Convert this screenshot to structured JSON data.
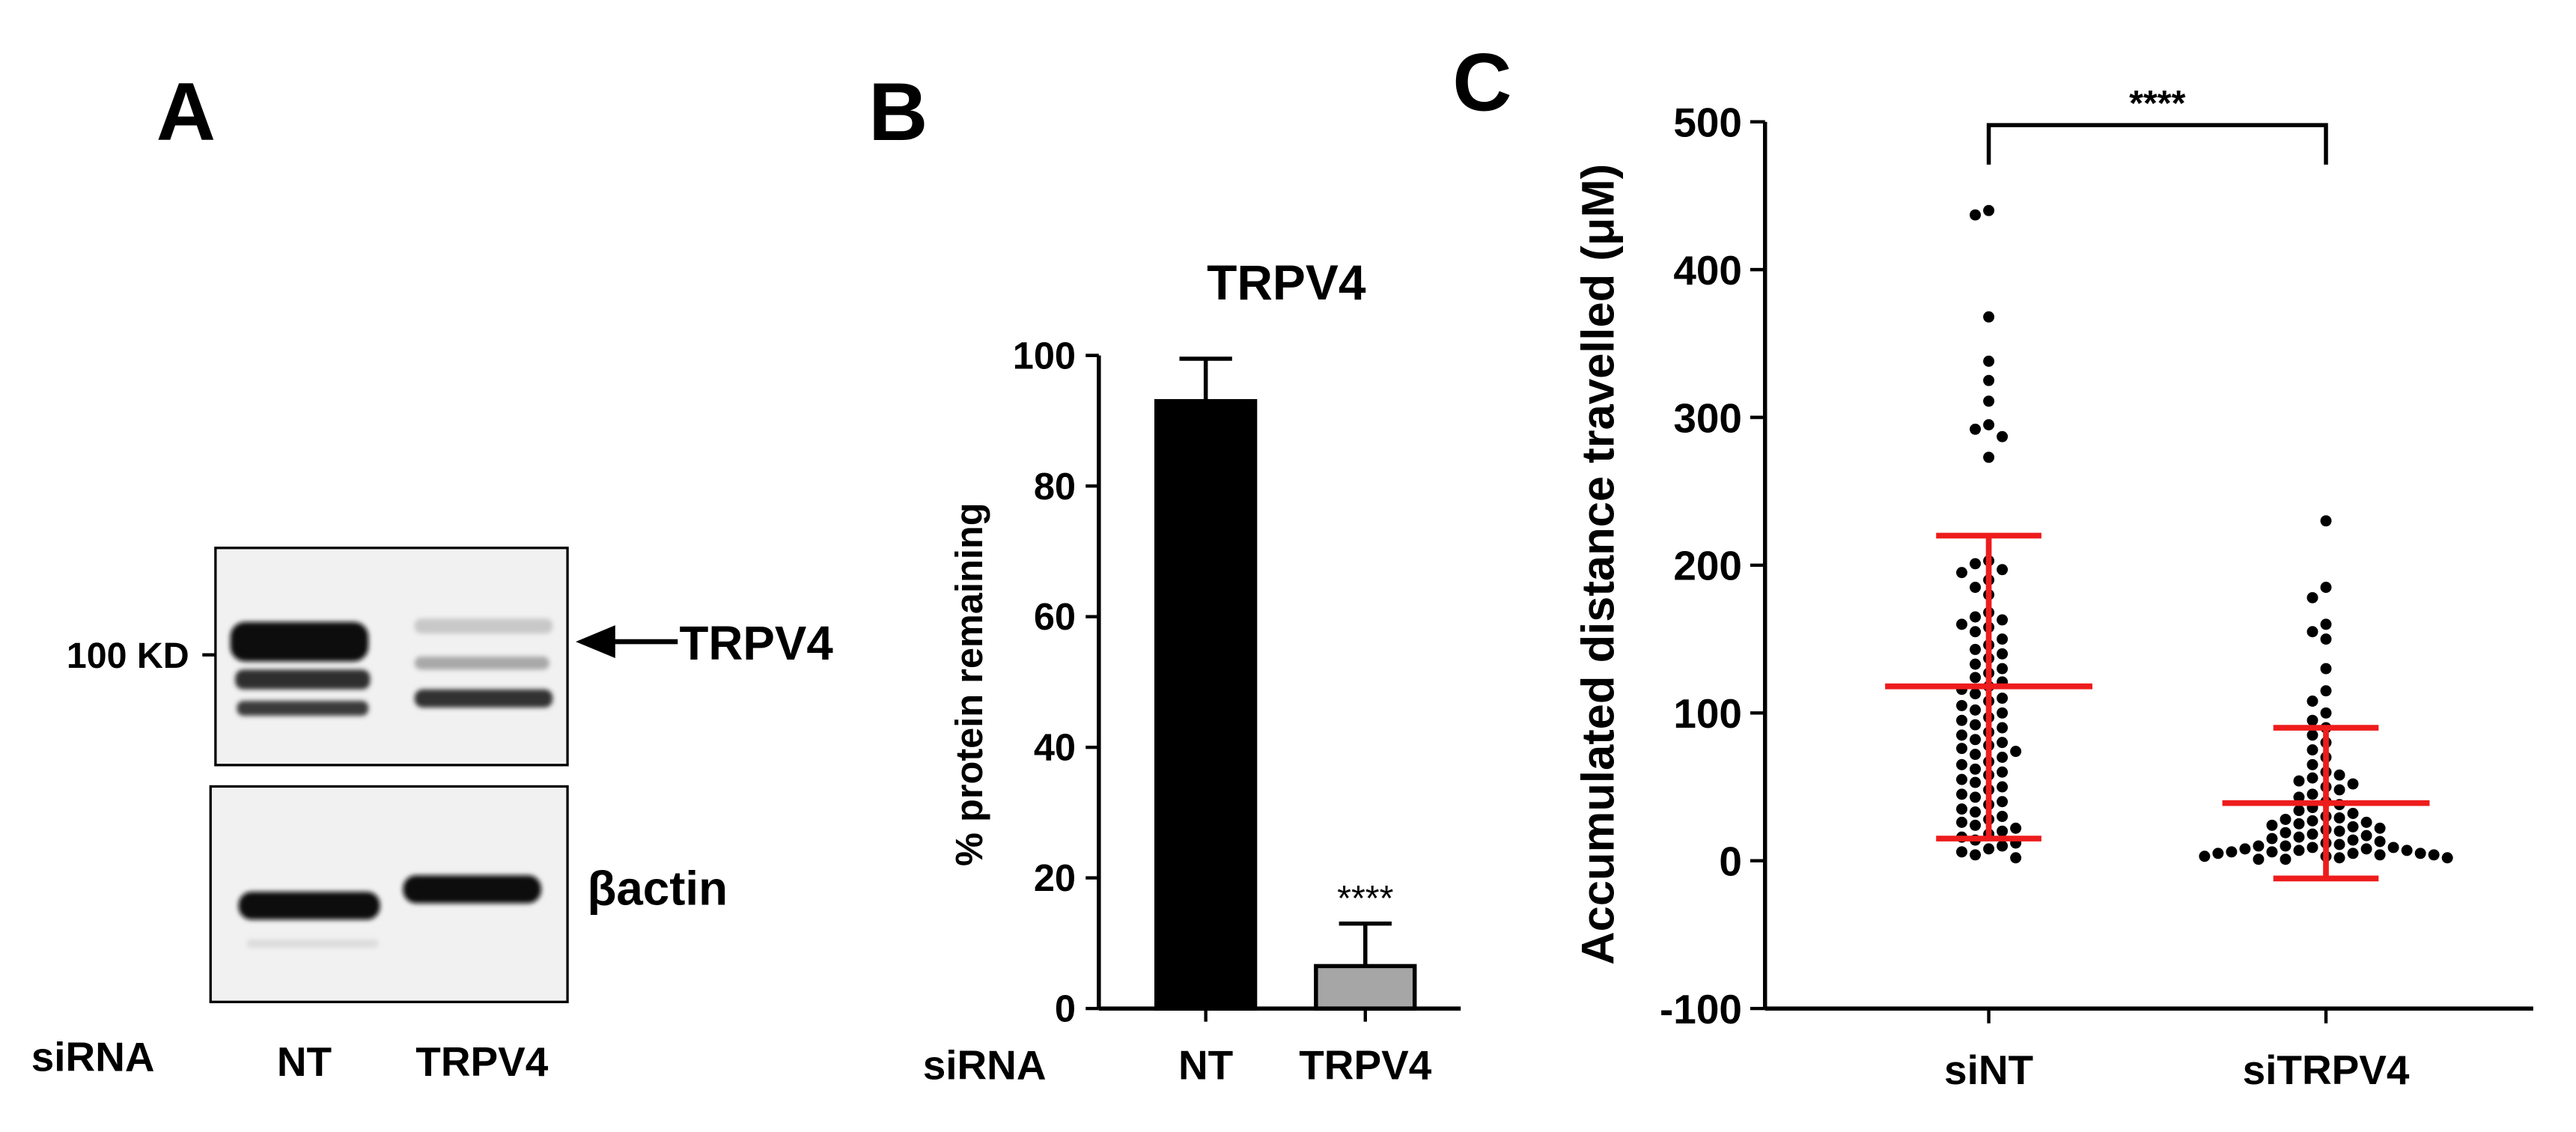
{
  "panels": {
    "A": {
      "letter": "A",
      "marker_label": "100 KD",
      "band_label": "TRPV4",
      "loading_label": "βactin",
      "row_label": "siRNA",
      "lanes": [
        "NT",
        "TRPV4"
      ]
    },
    "B": {
      "letter": "B",
      "row_label": "siRNA"
    },
    "C": {
      "letter": "C"
    }
  },
  "chart_data": [
    {
      "type": "bar",
      "title": "TRPV4",
      "xlabel": "",
      "ylabel": "% protein remaining",
      "ylim": [
        0,
        100
      ],
      "yticks": [
        0,
        20,
        40,
        60,
        80,
        100
      ],
      "categories": [
        "NT",
        "TRPV4"
      ],
      "values": [
        93,
        6.5
      ],
      "errors": [
        6.5,
        6.5
      ],
      "colors": [
        "#000000",
        "#a6a6a6"
      ],
      "annotations": [
        "",
        "****"
      ]
    },
    {
      "type": "scatter",
      "xlabel": "",
      "ylabel": "Accumulated distance travelled (μM)",
      "ylim": [
        -100,
        500
      ],
      "yticks": [
        -100,
        0,
        100,
        200,
        300,
        400,
        500
      ],
      "categories": [
        "siNT",
        "siTRPV4"
      ],
      "significance": "****",
      "series": [
        {
          "category": "siNT",
          "mean": 118,
          "sd_low": 15,
          "sd_high": 220,
          "points": [
            440,
            437,
            368,
            338,
            325,
            311,
            295,
            292,
            287,
            273,
            203,
            201,
            197,
            195,
            190,
            185,
            180,
            168,
            165,
            163,
            160,
            158,
            155,
            150,
            146,
            143,
            140,
            137,
            133,
            130,
            127,
            124,
            121,
            118,
            116,
            113,
            110,
            108,
            105,
            102,
            100,
            97,
            95,
            92,
            90,
            87,
            85,
            82,
            80,
            78,
            76,
            74,
            72,
            70,
            67,
            65,
            62,
            60,
            58,
            55,
            53,
            50,
            48,
            45,
            43,
            40,
            38,
            35,
            33,
            30,
            28,
            26,
            24,
            22,
            20,
            18,
            16,
            14,
            12,
            10,
            8,
            6,
            4,
            2
          ]
        },
        {
          "category": "siTRPV4",
          "mean": 39,
          "sd_low": -12,
          "sd_high": 90,
          "points": [
            230,
            185,
            178,
            160,
            155,
            150,
            130,
            115,
            108,
            100,
            95,
            90,
            85,
            80,
            75,
            70,
            65,
            60,
            58,
            56,
            54,
            52,
            50,
            48,
            45,
            43,
            40,
            38,
            36,
            34,
            32,
            30,
            29,
            28,
            27,
            26,
            25,
            24,
            23,
            22,
            21,
            20,
            19,
            18,
            17,
            16,
            15,
            14,
            13,
            12,
            11,
            10,
            10,
            9,
            9,
            8,
            8,
            7,
            7,
            6,
            6,
            5,
            5,
            5,
            4,
            4,
            3,
            3,
            2,
            2,
            1,
            1
          ]
        }
      ]
    }
  ]
}
